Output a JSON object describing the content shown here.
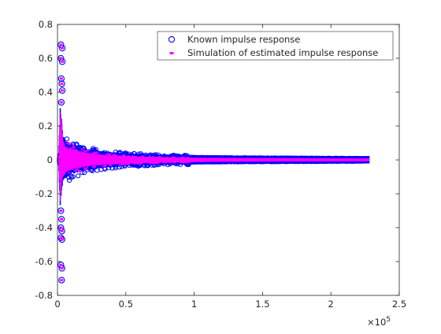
{
  "chart_data": {
    "type": "scatter",
    "title": "",
    "xlabel": "",
    "ylabel": "",
    "x_exponent_label": "×10",
    "x_exponent_power": "5",
    "xlim": [
      0,
      250000
    ],
    "ylim": [
      -0.8,
      0.8
    ],
    "x_ticks": [
      {
        "value": 0,
        "label": "0"
      },
      {
        "value": 50000,
        "label": "0.5"
      },
      {
        "value": 100000,
        "label": "1"
      },
      {
        "value": 150000,
        "label": "1.5"
      },
      {
        "value": 200000,
        "label": "2"
      },
      {
        "value": 250000,
        "label": "2.5"
      }
    ],
    "y_ticks": [
      {
        "value": -0.8,
        "label": "-0.8"
      },
      {
        "value": -0.6,
        "label": "-0.6"
      },
      {
        "value": -0.4,
        "label": "-0.4"
      },
      {
        "value": -0.2,
        "label": "-0.2"
      },
      {
        "value": 0,
        "label": "0"
      },
      {
        "value": 0.2,
        "label": "0.2"
      },
      {
        "value": 0.4,
        "label": "0.4"
      },
      {
        "value": 0.6,
        "label": "0.6"
      },
      {
        "value": 0.8,
        "label": "0.8"
      }
    ],
    "grid": false,
    "legend_position": "top-right",
    "series": [
      {
        "name": "Known impulse response",
        "marker": "circle",
        "color": "#0000ff",
        "sample_count": 228000,
        "envelope": [
          {
            "x": 0,
            "y_min": -0.005,
            "y_max": 0.005
          },
          {
            "x": 1000,
            "y_min": -0.03,
            "y_max": 0.04
          },
          {
            "x": 2000,
            "y_min": -0.27,
            "y_max": 0.33
          },
          {
            "x": 3000,
            "y_min": -0.18,
            "y_max": 0.25
          },
          {
            "x": 4000,
            "y_min": -0.12,
            "y_max": 0.14
          },
          {
            "x": 6000,
            "y_min": -0.1,
            "y_max": 0.1
          },
          {
            "x": 10000,
            "y_min": -0.075,
            "y_max": 0.085
          },
          {
            "x": 20000,
            "y_min": -0.055,
            "y_max": 0.06
          },
          {
            "x": 30000,
            "y_min": -0.04,
            "y_max": 0.045
          },
          {
            "x": 50000,
            "y_min": -0.028,
            "y_max": 0.03
          },
          {
            "x": 80000,
            "y_min": -0.02,
            "y_max": 0.022
          },
          {
            "x": 120000,
            "y_min": -0.016,
            "y_max": 0.018
          },
          {
            "x": 180000,
            "y_min": -0.014,
            "y_max": 0.015
          },
          {
            "x": 228000,
            "y_min": -0.012,
            "y_max": 0.013
          }
        ],
        "outliers": [
          {
            "x": 2500,
            "y": 0.68
          },
          {
            "x": 3500,
            "y": 0.66
          },
          {
            "x": 2500,
            "y": 0.6
          },
          {
            "x": 3500,
            "y": 0.58
          },
          {
            "x": 2800,
            "y": 0.48
          },
          {
            "x": 3200,
            "y": 0.45
          },
          {
            "x": 3500,
            "y": 0.41
          },
          {
            "x": 2800,
            "y": 0.34
          },
          {
            "x": 2500,
            "y": -0.3
          },
          {
            "x": 2900,
            "y": -0.35
          },
          {
            "x": 2500,
            "y": -0.4
          },
          {
            "x": 3200,
            "y": -0.42
          },
          {
            "x": 2500,
            "y": -0.46
          },
          {
            "x": 3300,
            "y": -0.47
          },
          {
            "x": 2500,
            "y": -0.62
          },
          {
            "x": 3300,
            "y": -0.64
          },
          {
            "x": 3000,
            "y": -0.71
          }
        ]
      },
      {
        "name": "Simulation of estimated impulse response",
        "marker": "dot",
        "color": "#ff00ff",
        "sample_count": 228000,
        "envelope": [
          {
            "x": 0,
            "y_min": -0.003,
            "y_max": 0.003
          },
          {
            "x": 1000,
            "y_min": -0.02,
            "y_max": 0.03
          },
          {
            "x": 2000,
            "y_min": -0.25,
            "y_max": 0.31
          },
          {
            "x": 3000,
            "y_min": -0.16,
            "y_max": 0.23
          },
          {
            "x": 4000,
            "y_min": -0.1,
            "y_max": 0.12
          },
          {
            "x": 6000,
            "y_min": -0.08,
            "y_max": 0.085
          },
          {
            "x": 10000,
            "y_min": -0.06,
            "y_max": 0.07
          },
          {
            "x": 20000,
            "y_min": -0.04,
            "y_max": 0.045
          },
          {
            "x": 30000,
            "y_min": -0.03,
            "y_max": 0.032
          },
          {
            "x": 50000,
            "y_min": -0.02,
            "y_max": 0.02
          },
          {
            "x": 80000,
            "y_min": -0.012,
            "y_max": 0.013
          },
          {
            "x": 120000,
            "y_min": -0.008,
            "y_max": 0.009
          },
          {
            "x": 180000,
            "y_min": -0.006,
            "y_max": 0.007
          },
          {
            "x": 228000,
            "y_min": -0.005,
            "y_max": 0.005
          }
        ],
        "outliers": [
          {
            "x": 2500,
            "y": 0.68
          },
          {
            "x": 3500,
            "y": 0.66
          },
          {
            "x": 2500,
            "y": 0.6
          },
          {
            "x": 3500,
            "y": 0.58
          },
          {
            "x": 2800,
            "y": 0.48
          },
          {
            "x": 3200,
            "y": 0.45
          },
          {
            "x": 3500,
            "y": 0.41
          },
          {
            "x": 2800,
            "y": 0.34
          },
          {
            "x": 2500,
            "y": -0.3
          },
          {
            "x": 2900,
            "y": -0.35
          },
          {
            "x": 2500,
            "y": -0.4
          },
          {
            "x": 3200,
            "y": -0.42
          },
          {
            "x": 2500,
            "y": -0.46
          },
          {
            "x": 3300,
            "y": -0.47
          },
          {
            "x": 2500,
            "y": -0.62
          },
          {
            "x": 3300,
            "y": -0.64
          },
          {
            "x": 3000,
            "y": -0.71
          }
        ]
      }
    ]
  }
}
